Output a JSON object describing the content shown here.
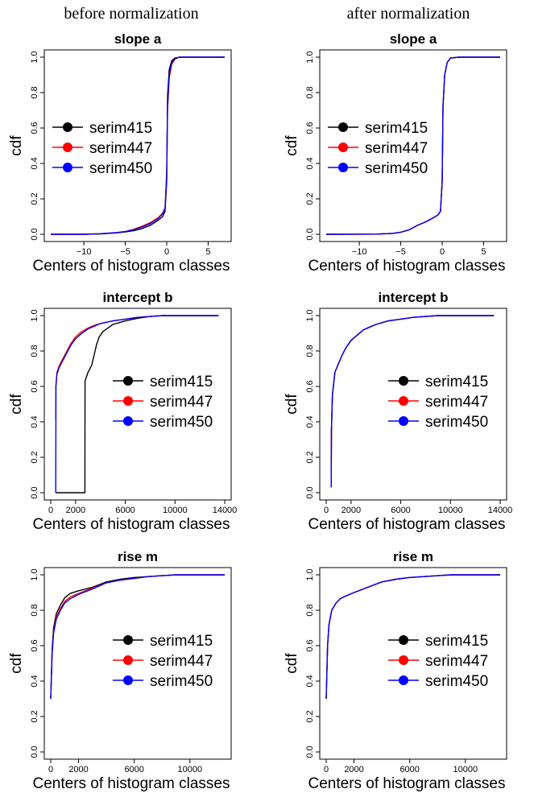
{
  "column_titles": [
    "before normalization",
    "after normalization"
  ],
  "colors": {
    "serim415": "#000000",
    "serim447": "#ff0000",
    "serim450": "#0000ff"
  },
  "chart_data": [
    {
      "type": "line",
      "title": "slope a",
      "xlabel": "Centers of histogram classes",
      "ylabel": "cdf",
      "xlim": [
        -14,
        7
      ],
      "ylim": [
        0,
        1
      ],
      "xticks": [
        -10,
        -5,
        0,
        5
      ],
      "xtick_labels": [
        "−10",
        "−5",
        "0",
        "5"
      ],
      "yticks": [
        0.0,
        0.2,
        0.4,
        0.6,
        0.8,
        1.0
      ],
      "ytick_labels": [
        "0.0",
        "0.2",
        "0.4",
        "0.6",
        "0.8",
        "1.0"
      ],
      "legend": [
        "serim415",
        "serim447",
        "serim450"
      ],
      "legend_position": "center-left",
      "series": [
        {
          "name": "serim415",
          "x": [
            -14,
            -10,
            -8,
            -6,
            -5,
            -4,
            -3,
            -2,
            -1,
            -0.5,
            -0.2,
            0,
            0.1,
            0.3,
            0.6,
            1,
            1.5,
            2,
            7
          ],
          "values": [
            0,
            0,
            0.002,
            0.008,
            0.013,
            0.02,
            0.032,
            0.05,
            0.08,
            0.1,
            0.13,
            0.3,
            0.78,
            0.93,
            0.98,
            0.995,
            1,
            1,
            1
          ]
        },
        {
          "name": "serim447",
          "x": [
            -14,
            -10,
            -8,
            -6,
            -5,
            -4,
            -3,
            -2,
            -1,
            -0.5,
            -0.2,
            0,
            0.1,
            0.3,
            0.6,
            1,
            1.5,
            2,
            7
          ],
          "values": [
            0,
            0,
            0.003,
            0.01,
            0.016,
            0.028,
            0.045,
            0.065,
            0.095,
            0.12,
            0.15,
            0.35,
            0.7,
            0.88,
            0.96,
            0.99,
            1,
            1,
            1
          ]
        },
        {
          "name": "serim450",
          "x": [
            -14,
            -10,
            -8,
            -6,
            -5,
            -4,
            -3,
            -2,
            -1,
            -0.5,
            -0.2,
            0,
            0.1,
            0.3,
            0.6,
            1,
            1.5,
            2,
            7
          ],
          "values": [
            0,
            0,
            0.003,
            0.009,
            0.015,
            0.025,
            0.04,
            0.06,
            0.09,
            0.115,
            0.14,
            0.33,
            0.72,
            0.9,
            0.97,
            0.99,
            1,
            1,
            1
          ]
        }
      ]
    },
    {
      "type": "line",
      "title": "slope a",
      "xlabel": "Centers of histogram classes",
      "ylabel": "cdf",
      "xlim": [
        -14,
        7
      ],
      "ylim": [
        0,
        1
      ],
      "xticks": [
        -10,
        -5,
        0,
        5
      ],
      "xtick_labels": [
        "−10",
        "−5",
        "0",
        "5"
      ],
      "yticks": [
        0.0,
        0.2,
        0.4,
        0.6,
        0.8,
        1.0
      ],
      "ytick_labels": [
        "0.0",
        "0.2",
        "0.4",
        "0.6",
        "0.8",
        "1.0"
      ],
      "legend": [
        "serim415",
        "serim447",
        "serim450"
      ],
      "legend_position": "center-left",
      "series": [
        {
          "name": "serim415",
          "x": [
            -14,
            -8,
            -6,
            -5,
            -4,
            -3,
            -2,
            -1,
            -0.5,
            -0.2,
            0,
            0.1,
            0.3,
            0.6,
            1,
            2,
            7
          ],
          "values": [
            0,
            0.001,
            0.005,
            0.012,
            0.025,
            0.05,
            0.07,
            0.095,
            0.11,
            0.13,
            0.3,
            0.72,
            0.9,
            0.97,
            0.995,
            1,
            1
          ]
        },
        {
          "name": "serim447",
          "x": [
            -14,
            -8,
            -6,
            -5,
            -4,
            -3,
            -2,
            -1,
            -0.5,
            -0.2,
            0,
            0.1,
            0.3,
            0.6,
            1,
            2,
            7
          ],
          "values": [
            0,
            0.001,
            0.005,
            0.012,
            0.025,
            0.05,
            0.07,
            0.095,
            0.11,
            0.13,
            0.3,
            0.72,
            0.9,
            0.97,
            0.995,
            1,
            1
          ]
        },
        {
          "name": "serim450",
          "x": [
            -14,
            -8,
            -6,
            -5,
            -4,
            -3,
            -2,
            -1,
            -0.5,
            -0.2,
            0,
            0.1,
            0.3,
            0.6,
            1,
            2,
            7
          ],
          "values": [
            0,
            0.001,
            0.005,
            0.012,
            0.025,
            0.05,
            0.07,
            0.095,
            0.11,
            0.13,
            0.3,
            0.72,
            0.9,
            0.97,
            0.995,
            1,
            1
          ]
        }
      ]
    },
    {
      "type": "line",
      "title": "intercept b",
      "xlabel": "Centers of histogram classes",
      "ylabel": "cdf",
      "xlim": [
        0,
        14000
      ],
      "ylim": [
        0,
        1
      ],
      "xticks": [
        0,
        2000,
        6000,
        10000,
        14000
      ],
      "xtick_labels": [
        "0",
        "2000",
        "6000",
        "10000",
        "14000"
      ],
      "yticks": [
        0.0,
        0.2,
        0.4,
        0.6,
        0.8,
        1.0
      ],
      "ytick_labels": [
        "0.0",
        "0.2",
        "0.4",
        "0.6",
        "0.8",
        "1.0"
      ],
      "legend": [
        "serim415",
        "serim447",
        "serim450"
      ],
      "legend_position": "center-right",
      "series": [
        {
          "name": "serim415",
          "x": [
            400,
            2750,
            2760,
            3000,
            3300,
            3500,
            3700,
            3900,
            4200,
            4600,
            5000,
            5500,
            6000,
            7000,
            8000,
            9000,
            13500
          ],
          "values": [
            0,
            0,
            0.63,
            0.68,
            0.72,
            0.78,
            0.84,
            0.88,
            0.91,
            0.93,
            0.95,
            0.96,
            0.97,
            0.985,
            0.995,
            1,
            1
          ]
        },
        {
          "name": "serim447",
          "x": [
            400,
            410,
            500,
            700,
            1000,
            1300,
            1600,
            2000,
            2500,
            3000,
            3500,
            4000,
            5000,
            6000,
            7000,
            8000,
            9000,
            13500
          ],
          "values": [
            0.41,
            0.6,
            0.68,
            0.72,
            0.76,
            0.8,
            0.84,
            0.88,
            0.91,
            0.93,
            0.945,
            0.955,
            0.97,
            0.98,
            0.99,
            0.995,
            1,
            1
          ]
        },
        {
          "name": "serim450",
          "x": [
            400,
            420,
            500,
            700,
            1000,
            1300,
            1600,
            2000,
            2500,
            3000,
            3500,
            4000,
            5000,
            6000,
            7000,
            8000,
            9000,
            13500
          ],
          "values": [
            0,
            0.6,
            0.67,
            0.71,
            0.75,
            0.79,
            0.83,
            0.87,
            0.9,
            0.925,
            0.94,
            0.955,
            0.97,
            0.98,
            0.99,
            0.995,
            1,
            1
          ]
        }
      ]
    },
    {
      "type": "line",
      "title": "intercept b",
      "xlabel": "Centers of histogram classes",
      "ylabel": "cdf",
      "xlim": [
        0,
        14000
      ],
      "ylim": [
        0,
        1
      ],
      "xticks": [
        0,
        2000,
        6000,
        10000,
        14000
      ],
      "xtick_labels": [
        "0",
        "2000",
        "6000",
        "10000",
        "14000"
      ],
      "yticks": [
        0.0,
        0.2,
        0.4,
        0.6,
        0.8,
        1.0
      ],
      "ytick_labels": [
        "0.0",
        "0.2",
        "0.4",
        "0.6",
        "0.8",
        "1.0"
      ],
      "legend": [
        "serim415",
        "serim447",
        "serim450"
      ],
      "legend_position": "center-right",
      "series": [
        {
          "name": "serim415",
          "x": [
            400,
            420,
            500,
            700,
            1000,
            1300,
            1600,
            2000,
            2500,
            3000,
            3500,
            4000,
            5000,
            6000,
            7000,
            8000,
            9000,
            13500
          ],
          "values": [
            0.03,
            0.35,
            0.55,
            0.68,
            0.73,
            0.78,
            0.82,
            0.86,
            0.89,
            0.92,
            0.935,
            0.95,
            0.97,
            0.98,
            0.99,
            0.995,
            1,
            1
          ]
        },
        {
          "name": "serim447",
          "x": [
            400,
            420,
            500,
            700,
            1000,
            1300,
            1600,
            2000,
            2500,
            3000,
            3500,
            4000,
            5000,
            6000,
            7000,
            8000,
            9000,
            13500
          ],
          "values": [
            0.03,
            0.35,
            0.55,
            0.68,
            0.73,
            0.78,
            0.82,
            0.86,
            0.89,
            0.92,
            0.935,
            0.95,
            0.97,
            0.98,
            0.99,
            0.995,
            1,
            1
          ]
        },
        {
          "name": "serim450",
          "x": [
            400,
            420,
            500,
            700,
            1000,
            1300,
            1600,
            2000,
            2500,
            3000,
            3500,
            4000,
            5000,
            6000,
            7000,
            8000,
            9000,
            13500
          ],
          "values": [
            0.03,
            0.35,
            0.55,
            0.68,
            0.73,
            0.78,
            0.82,
            0.86,
            0.89,
            0.92,
            0.935,
            0.95,
            0.97,
            0.98,
            0.99,
            0.995,
            1,
            1
          ]
        }
      ]
    },
    {
      "type": "line",
      "title": "rise m",
      "xlabel": "Centers of histogram classes",
      "ylabel": "cdf",
      "xlim": [
        0,
        12500
      ],
      "ylim": [
        0,
        1
      ],
      "xticks": [
        0,
        2000,
        6000,
        10000
      ],
      "xtick_labels": [
        "0",
        "2000",
        "6000",
        "10000"
      ],
      "yticks": [
        0.0,
        0.2,
        0.4,
        0.6,
        0.8,
        1.0
      ],
      "ytick_labels": [
        "0.0",
        "0.2",
        "0.4",
        "0.6",
        "0.8",
        "1.0"
      ],
      "legend": [
        "serim415",
        "serim447",
        "serim450"
      ],
      "legend_position": "center-right",
      "series": [
        {
          "name": "serim415",
          "x": [
            0,
            100,
            200,
            400,
            700,
            1000,
            1400,
            2000,
            3000,
            4000,
            5000,
            6000,
            7000,
            8000,
            9000,
            10000,
            12500
          ],
          "values": [
            0.3,
            0.58,
            0.7,
            0.78,
            0.83,
            0.87,
            0.895,
            0.91,
            0.93,
            0.96,
            0.975,
            0.985,
            0.99,
            0.995,
            1,
            1,
            1
          ]
        },
        {
          "name": "serim447",
          "x": [
            0,
            100,
            200,
            400,
            700,
            1000,
            1400,
            2000,
            3000,
            4000,
            5000,
            6000,
            7000,
            8000,
            9000,
            10000,
            12500
          ],
          "values": [
            0.3,
            0.56,
            0.68,
            0.76,
            0.81,
            0.85,
            0.875,
            0.895,
            0.925,
            0.955,
            0.97,
            0.98,
            0.99,
            0.995,
            1,
            1,
            1
          ]
        },
        {
          "name": "serim450",
          "x": [
            0,
            100,
            200,
            400,
            700,
            1000,
            1400,
            2000,
            3000,
            4000,
            5000,
            6000,
            7000,
            8000,
            9000,
            10000,
            12500
          ],
          "values": [
            0.3,
            0.55,
            0.67,
            0.75,
            0.8,
            0.84,
            0.865,
            0.89,
            0.92,
            0.955,
            0.97,
            0.98,
            0.99,
            0.995,
            1,
            1,
            1
          ]
        }
      ]
    },
    {
      "type": "line",
      "title": "rise m",
      "xlabel": "Centers of histogram classes",
      "ylabel": "cdf",
      "xlim": [
        0,
        12500
      ],
      "ylim": [
        0,
        1
      ],
      "xticks": [
        0,
        2000,
        6000,
        10000
      ],
      "xtick_labels": [
        "0",
        "2000",
        "6000",
        "10000"
      ],
      "yticks": [
        0.0,
        0.2,
        0.4,
        0.6,
        0.8,
        1.0
      ],
      "ytick_labels": [
        "0.0",
        "0.2",
        "0.4",
        "0.6",
        "0.8",
        "1.0"
      ],
      "legend": [
        "serim415",
        "serim447",
        "serim450"
      ],
      "legend_position": "center-right",
      "series": [
        {
          "name": "serim415",
          "x": [
            0,
            100,
            200,
            400,
            700,
            1000,
            1400,
            2000,
            3000,
            4000,
            5000,
            6000,
            7000,
            8000,
            9000,
            10000,
            12500
          ],
          "values": [
            0.3,
            0.6,
            0.72,
            0.8,
            0.84,
            0.865,
            0.88,
            0.9,
            0.93,
            0.96,
            0.975,
            0.985,
            0.99,
            0.995,
            1,
            1,
            1
          ]
        },
        {
          "name": "serim447",
          "x": [
            0,
            100,
            200,
            400,
            700,
            1000,
            1400,
            2000,
            3000,
            4000,
            5000,
            6000,
            7000,
            8000,
            9000,
            10000,
            12500
          ],
          "values": [
            0.3,
            0.6,
            0.72,
            0.8,
            0.84,
            0.865,
            0.88,
            0.9,
            0.93,
            0.96,
            0.975,
            0.985,
            0.99,
            0.995,
            1,
            1,
            1
          ]
        },
        {
          "name": "serim450",
          "x": [
            0,
            100,
            200,
            400,
            700,
            1000,
            1400,
            2000,
            3000,
            4000,
            5000,
            6000,
            7000,
            8000,
            9000,
            10000,
            12500
          ],
          "values": [
            0.3,
            0.6,
            0.72,
            0.8,
            0.84,
            0.865,
            0.88,
            0.9,
            0.93,
            0.96,
            0.975,
            0.985,
            0.99,
            0.995,
            1,
            1,
            1
          ]
        }
      ]
    }
  ]
}
